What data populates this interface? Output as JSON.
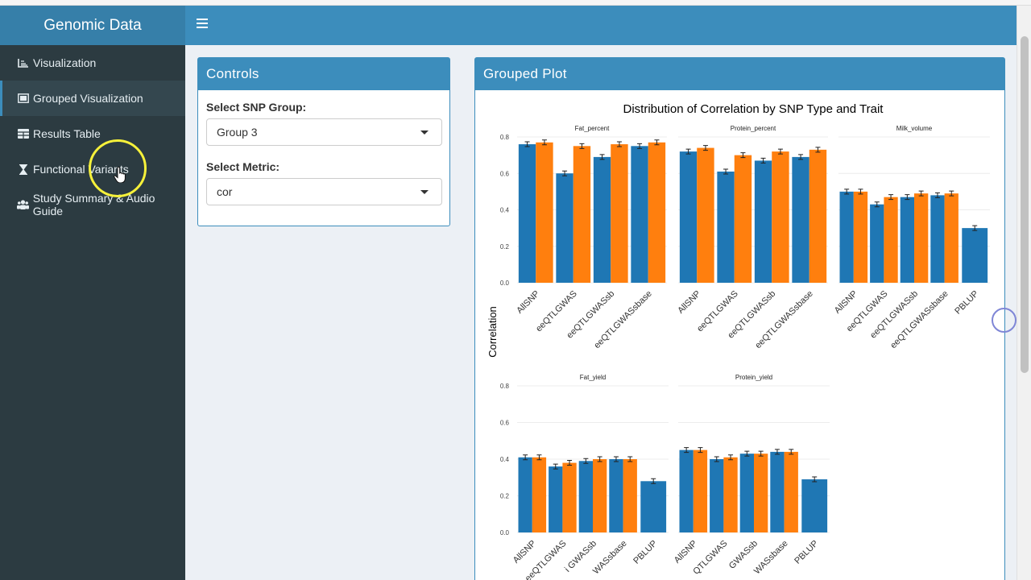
{
  "app": {
    "title": "Genomic Data"
  },
  "sidebar": {
    "items": [
      {
        "label": "Visualization",
        "icon": "line-chart-icon"
      },
      {
        "label": "Grouped Visualization",
        "icon": "image-icon"
      },
      {
        "label": "Results Table",
        "icon": "table-icon"
      },
      {
        "label": "Functional Variants",
        "icon": "hourglass-icon"
      },
      {
        "label": "Study Summary & Audio Guide",
        "icon": "users-icon"
      }
    ],
    "active_index": 1
  },
  "controls": {
    "title": "Controls",
    "snp_group_label": "Select SNP Group:",
    "snp_group_value": "Group 3",
    "metric_label": "Select Metric:",
    "metric_value": "cor"
  },
  "plot_box": {
    "title": "Grouped Plot"
  },
  "colors": {
    "accent": "#3c8dbc",
    "sidebar": "#2c3b41",
    "brand": "#367fa9",
    "series_blue": "#1f77b4",
    "series_orange": "#ff7f0e"
  },
  "chart_data": {
    "type": "bar",
    "title": "Distribution of Correlation by SNP Type and Trait",
    "ylabel": "Correlation",
    "ylim": [
      0,
      0.8
    ],
    "yticks": [
      "0.0",
      "0.2",
      "0.4",
      "0.6",
      "0.8"
    ],
    "facets": [
      {
        "name": "Fat_percent",
        "categories": [
          "AllSNP",
          "eeQTLGWAS",
          "eeQTLGWASsb",
          "eeQTLGWASsbase"
        ],
        "series": [
          {
            "name": "blue",
            "values": [
              0.76,
              0.6,
              0.69,
              0.75
            ]
          },
          {
            "name": "orange",
            "values": [
              0.77,
              0.75,
              0.76,
              0.77
            ]
          }
        ],
        "tick_labels": [
          "AllSNP",
          "eeQTLGWAS",
          "eeQTLGWASsb",
          "eeQTLGWASsbase"
        ]
      },
      {
        "name": "Protein_percent",
        "categories": [
          "AllSNP",
          "eeQTLGWAS",
          "eeQTLGWASsb",
          "eeQTLGWASsbase"
        ],
        "series": [
          {
            "name": "blue",
            "values": [
              0.72,
              0.61,
              0.67,
              0.69
            ]
          },
          {
            "name": "orange",
            "values": [
              0.74,
              0.7,
              0.72,
              0.73
            ]
          }
        ],
        "tick_labels": [
          "AllSNP",
          "eeQTLGWAS",
          "eeQTLGWASsb",
          "eeQTLGWASsbase"
        ]
      },
      {
        "name": "Milk_volume",
        "categories": [
          "AllSNP",
          "eeQTLGWAS",
          "eeQTLGWASsb",
          "eeQTLGWASsbase",
          "PBLUP"
        ],
        "series": [
          {
            "name": "blue",
            "values": [
              0.5,
              0.43,
              0.47,
              0.48,
              0.3
            ]
          },
          {
            "name": "orange",
            "values": [
              0.5,
              0.47,
              0.49,
              0.49,
              null
            ]
          }
        ],
        "tick_labels": [
          "AllSNP",
          "eeQTLGWAS",
          "eeQTLGWASsb",
          "eeQTLGWASsbase",
          "PBLUP"
        ]
      },
      {
        "name": "Fat_yield",
        "categories": [
          "AllSNP",
          "eeQTLGWAS",
          "eeQTLGWASsb",
          "eeQTLGWASsbase",
          "PBLUP"
        ],
        "series": [
          {
            "name": "blue",
            "values": [
              0.41,
              0.36,
              0.39,
              0.4,
              0.28
            ]
          },
          {
            "name": "orange",
            "values": [
              0.41,
              0.38,
              0.4,
              0.4,
              null
            ]
          }
        ],
        "tick_labels": [
          "AllSNP",
          "eeQTLGWAS",
          "i GWASsb",
          "WASsbase",
          "PBLUP"
        ]
      },
      {
        "name": "Protein_yield",
        "categories": [
          "AllSNP",
          "eeQTLGWAS",
          "eeQTLGWASsb",
          "eeQTLGWASsbase",
          "PBLUP"
        ],
        "series": [
          {
            "name": "blue",
            "values": [
              0.45,
              0.4,
              0.43,
              0.44,
              0.29
            ]
          },
          {
            "name": "orange",
            "values": [
              0.45,
              0.41,
              0.43,
              0.44,
              null
            ]
          }
        ],
        "tick_labels": [
          "AllSNP",
          "QTLGWAS",
          "GWASsb",
          "WASsbase",
          "PBLUP"
        ]
      }
    ]
  }
}
